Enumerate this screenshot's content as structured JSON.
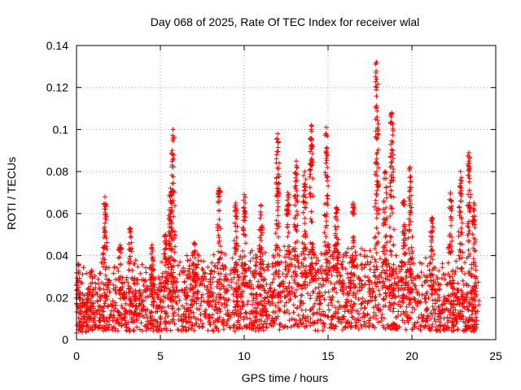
{
  "chart_data": {
    "type": "scatter",
    "title": "Day 068 of 2025, Rate Of TEC Index for receiver wlal",
    "xlabel": "GPS time / hours",
    "ylabel": "ROTI / TECUs",
    "xlim": [
      0,
      25
    ],
    "ylim": [
      0,
      0.14
    ],
    "xticks": [
      {
        "value": 0,
        "label": "0"
      },
      {
        "value": 5,
        "label": "5"
      },
      {
        "value": 10,
        "label": "10"
      },
      {
        "value": 15,
        "label": "15"
      },
      {
        "value": 20,
        "label": "20"
      },
      {
        "value": 25,
        "label": "25"
      }
    ],
    "yticks": [
      {
        "value": 0,
        "label": "0"
      },
      {
        "value": 0.02,
        "label": "0.02"
      },
      {
        "value": 0.04,
        "label": "0.04"
      },
      {
        "value": 0.06,
        "label": "0.06"
      },
      {
        "value": 0.08,
        "label": "0.08"
      },
      {
        "value": 0.1,
        "label": "0.1"
      },
      {
        "value": 0.12,
        "label": "0.12"
      },
      {
        "value": 0.14,
        "label": "0.14"
      }
    ],
    "grid": true,
    "marker": "plus",
    "color": "#ff0000",
    "band_median": [
      [
        0,
        0.012
      ],
      [
        2,
        0.016
      ],
      [
        4,
        0.016
      ],
      [
        6,
        0.018
      ],
      [
        8,
        0.02
      ],
      [
        10,
        0.02
      ],
      [
        12,
        0.022
      ],
      [
        14,
        0.025
      ],
      [
        16,
        0.022
      ],
      [
        18,
        0.022
      ],
      [
        20,
        0.018
      ],
      [
        22,
        0.016
      ],
      [
        24,
        0.015
      ]
    ],
    "peaks": [
      {
        "x": 0.1,
        "y": 0.036
      },
      {
        "x": 0.9,
        "y": 0.033
      },
      {
        "x": 1.7,
        "y": 0.068
      },
      {
        "x": 2.6,
        "y": 0.045
      },
      {
        "x": 3.2,
        "y": 0.053
      },
      {
        "x": 4.5,
        "y": 0.045
      },
      {
        "x": 5.3,
        "y": 0.05
      },
      {
        "x": 5.6,
        "y": 0.072
      },
      {
        "x": 5.75,
        "y": 0.1
      },
      {
        "x": 7.0,
        "y": 0.046
      },
      {
        "x": 8.5,
        "y": 0.072
      },
      {
        "x": 9.5,
        "y": 0.065
      },
      {
        "x": 10.0,
        "y": 0.069
      },
      {
        "x": 11.0,
        "y": 0.064
      },
      {
        "x": 12.0,
        "y": 0.098
      },
      {
        "x": 12.6,
        "y": 0.07
      },
      {
        "x": 13.1,
        "y": 0.085
      },
      {
        "x": 13.6,
        "y": 0.08
      },
      {
        "x": 14.0,
        "y": 0.102
      },
      {
        "x": 14.9,
        "y": 0.101
      },
      {
        "x": 15.5,
        "y": 0.063
      },
      {
        "x": 16.5,
        "y": 0.065
      },
      {
        "x": 17.9,
        "y": 0.132
      },
      {
        "x": 18.4,
        "y": 0.08
      },
      {
        "x": 18.8,
        "y": 0.108
      },
      {
        "x": 19.5,
        "y": 0.066
      },
      {
        "x": 19.9,
        "y": 0.082
      },
      {
        "x": 21.2,
        "y": 0.058
      },
      {
        "x": 22.3,
        "y": 0.07
      },
      {
        "x": 22.9,
        "y": 0.08
      },
      {
        "x": 23.4,
        "y": 0.089
      },
      {
        "x": 23.7,
        "y": 0.065
      }
    ]
  }
}
